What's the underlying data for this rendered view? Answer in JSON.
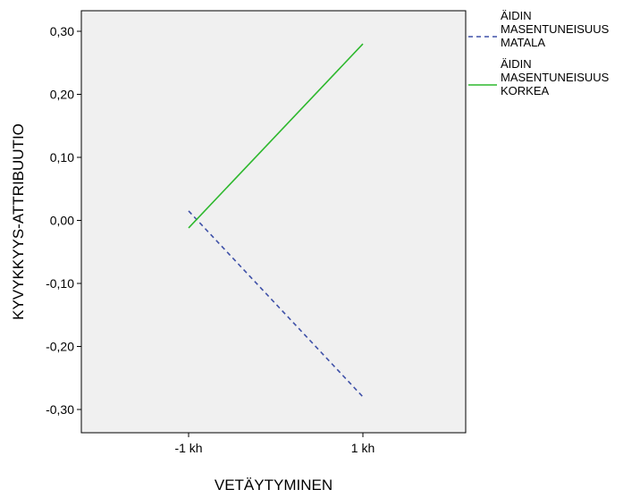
{
  "chart_data": {
    "type": "line",
    "title": "",
    "xlabel": "VETÄYTYMINEN",
    "ylabel": "KYVYKKYYS-ATTRIBUUTIO",
    "categories": [
      "-1 kh",
      "1 kh"
    ],
    "ylim": [
      -0.34,
      0.34
    ],
    "yticks": [
      0.3,
      0.2,
      0.1,
      0.0,
      -0.1,
      -0.2,
      -0.3
    ],
    "ytick_labels": [
      "0,30",
      "0,20",
      "0,10",
      "0,00",
      "-0,10",
      "-0,20",
      "-0,30"
    ],
    "grid": false,
    "legend_position": "right",
    "plot_background": "#f0f0f0",
    "series": [
      {
        "name_lines": [
          "ÄIDIN",
          "MASENTUNEISUUS",
          "MATALA"
        ],
        "values": [
          0.015,
          -0.28
        ],
        "color": "#3f51a8",
        "dash": "dashed"
      },
      {
        "name_lines": [
          "ÄIDIN",
          "MASENTUNEISUUS",
          "KORKEA"
        ],
        "values": [
          -0.012,
          0.28
        ],
        "color": "#2eb82e",
        "dash": "solid"
      }
    ]
  }
}
